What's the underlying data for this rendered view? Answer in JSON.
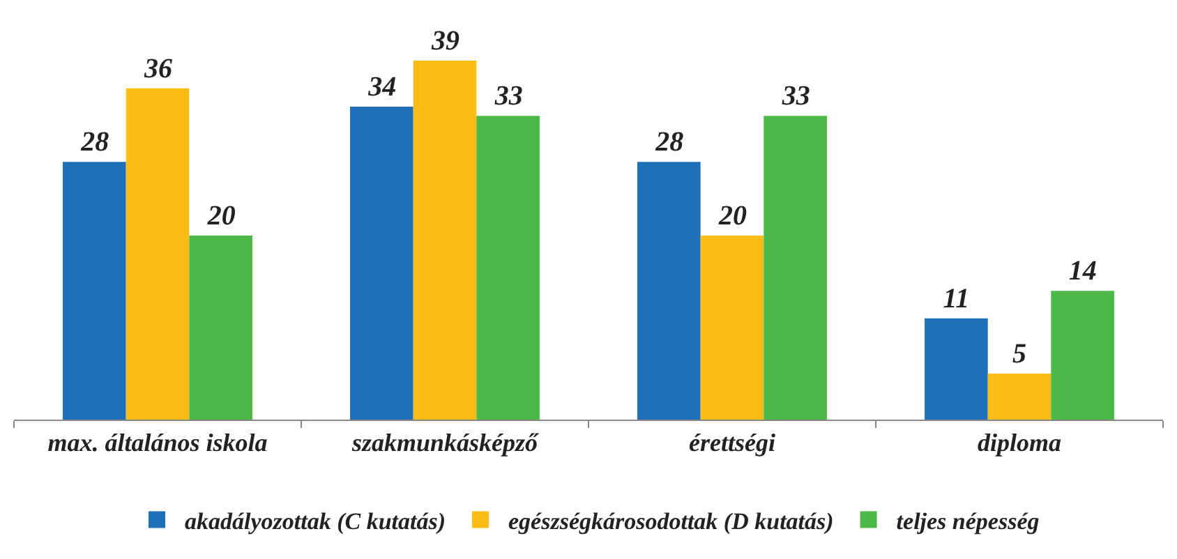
{
  "chart_data": {
    "type": "bar",
    "categories": [
      "max. általános iskola",
      "szakmunkásképző",
      "érettségi",
      "diploma"
    ],
    "series": [
      {
        "name": "akadályozottak (C kutatás)",
        "color": "#1f6fb9",
        "values": [
          28,
          34,
          28,
          11
        ]
      },
      {
        "name": "egészségkárosodottak (D kutatás)",
        "color": "#fbbd14",
        "values": [
          36,
          39,
          20,
          5
        ]
      },
      {
        "name": "teljes népesség",
        "color": "#4cb848",
        "values": [
          20,
          33,
          33,
          14
        ]
      }
    ],
    "data_labels": true,
    "tick_labels": "x",
    "legend": "bottom"
  }
}
